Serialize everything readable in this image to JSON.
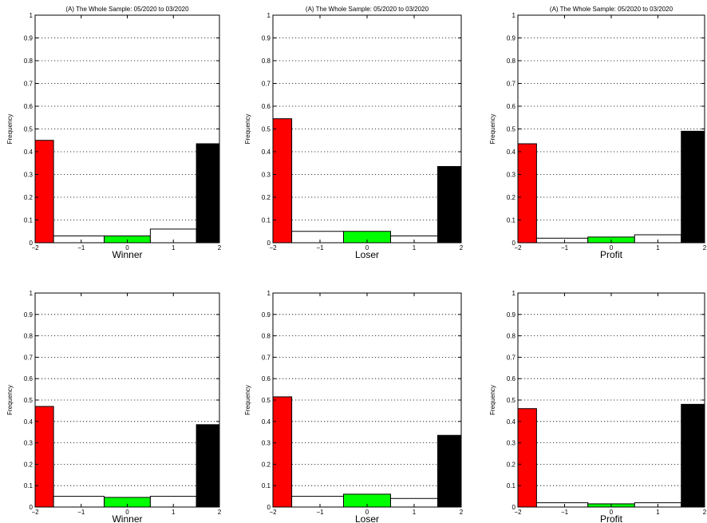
{
  "colors": {
    "bar_red": "#ff0000",
    "bar_green": "#00ff00",
    "bar_black": "#000000",
    "bar_white": "#ffffff",
    "frame": "#000000",
    "grid": "#000000"
  },
  "chart_data": [
    {
      "type": "bar",
      "title": "(A) The Whole Sample: 05/2020 to 03/2020",
      "xlabel": "Winner",
      "ylabel": "Frequency",
      "xlim": [
        -2,
        2
      ],
      "ylim": [
        0,
        1
      ],
      "xticks": [
        "−2",
        "−1",
        "0",
        "1",
        "2"
      ],
      "yticks": [
        "0",
        "0.1",
        "0.2",
        "0.3",
        "0.4",
        "0.5",
        "0.6",
        "0.7",
        "0.8",
        "0.9",
        "1"
      ],
      "grid": "horizontal dotted",
      "bin_edges": [
        -2,
        -1.6,
        -0.5,
        0.5,
        1.5,
        2
      ],
      "bin_colors": [
        "red",
        "white",
        "green",
        "white",
        "black"
      ],
      "values": [
        0.45,
        0.03,
        0.03,
        0.06,
        0.435
      ]
    },
    {
      "type": "bar",
      "title": "(A) The Whole Sample: 05/2020 to 03/2020",
      "xlabel": "Loser",
      "ylabel": "Frequency",
      "xlim": [
        -2,
        2
      ],
      "ylim": [
        0,
        1
      ],
      "xticks": [
        "−2",
        "−1",
        "0",
        "1",
        "2"
      ],
      "yticks": [
        "0",
        "0.1",
        "0.2",
        "0.3",
        "0.4",
        "0.5",
        "0.6",
        "0.7",
        "0.8",
        "0.9",
        "1"
      ],
      "grid": "horizontal dotted",
      "bin_edges": [
        -2,
        -1.6,
        -0.5,
        0.5,
        1.5,
        2
      ],
      "bin_colors": [
        "red",
        "white",
        "green",
        "white",
        "black"
      ],
      "values": [
        0.545,
        0.05,
        0.05,
        0.03,
        0.335
      ]
    },
    {
      "type": "bar",
      "title": "(A) The Whole Sample: 05/2020 to 03/2020",
      "xlabel": "Profit",
      "ylabel": "Frequency",
      "xlim": [
        -2,
        2
      ],
      "ylim": [
        0,
        1
      ],
      "xticks": [
        "−2",
        "−1",
        "0",
        "1",
        "2"
      ],
      "yticks": [
        "0",
        "0.1",
        "0.2",
        "0.3",
        "0.4",
        "0.5",
        "0.6",
        "0.7",
        "0.8",
        "0.9",
        "1"
      ],
      "grid": "horizontal dotted",
      "bin_edges": [
        -2,
        -1.6,
        -0.5,
        0.5,
        1.5,
        2
      ],
      "bin_colors": [
        "red",
        "white",
        "green",
        "white",
        "black"
      ],
      "values": [
        0.435,
        0.02,
        0.025,
        0.035,
        0.49
      ]
    },
    {
      "type": "bar",
      "title": "",
      "xlabel": "Winner",
      "ylabel": "Frequency",
      "xlim": [
        -2,
        2
      ],
      "ylim": [
        0,
        1
      ],
      "xticks": [
        "−2",
        "−1",
        "0",
        "1",
        "2"
      ],
      "yticks": [
        "0",
        "0.1",
        "0.2",
        "0.3",
        "0.4",
        "0.5",
        "0.6",
        "0.7",
        "0.8",
        "0.9",
        "1"
      ],
      "grid": "horizontal dotted",
      "bin_edges": [
        -2,
        -1.6,
        -0.5,
        0.5,
        1.5,
        2
      ],
      "bin_colors": [
        "red",
        "white",
        "green",
        "white",
        "black"
      ],
      "values": [
        0.47,
        0.05,
        0.045,
        0.05,
        0.385
      ]
    },
    {
      "type": "bar",
      "title": "",
      "xlabel": "Loser",
      "ylabel": "Frequency",
      "xlim": [
        -2,
        2
      ],
      "ylim": [
        0,
        1
      ],
      "xticks": [
        "−2",
        "−1",
        "0",
        "1",
        "2"
      ],
      "yticks": [
        "0",
        "0.1",
        "0.2",
        "0.3",
        "0.4",
        "0.5",
        "0.6",
        "0.7",
        "0.8",
        "0.9",
        "1"
      ],
      "grid": "horizontal dotted",
      "bin_edges": [
        -2,
        -1.6,
        -0.5,
        0.5,
        1.5,
        2
      ],
      "bin_colors": [
        "red",
        "white",
        "green",
        "white",
        "black"
      ],
      "values": [
        0.515,
        0.05,
        0.06,
        0.04,
        0.335
      ]
    },
    {
      "type": "bar",
      "title": "",
      "xlabel": "Profit",
      "ylabel": "Frequency",
      "xlim": [
        -2,
        2
      ],
      "ylim": [
        0,
        1
      ],
      "xticks": [
        "−2",
        "−1",
        "0",
        "1",
        "2"
      ],
      "yticks": [
        "0",
        "0.1",
        "0.2",
        "0.3",
        "0.4",
        "0.5",
        "0.6",
        "0.7",
        "0.8",
        "0.9",
        "1"
      ],
      "grid": "horizontal dotted",
      "bin_edges": [
        -2,
        -1.6,
        -0.5,
        0.5,
        1.5,
        2
      ],
      "bin_colors": [
        "red",
        "white",
        "green",
        "white",
        "black"
      ],
      "values": [
        0.46,
        0.02,
        0.015,
        0.02,
        0.48
      ]
    }
  ]
}
